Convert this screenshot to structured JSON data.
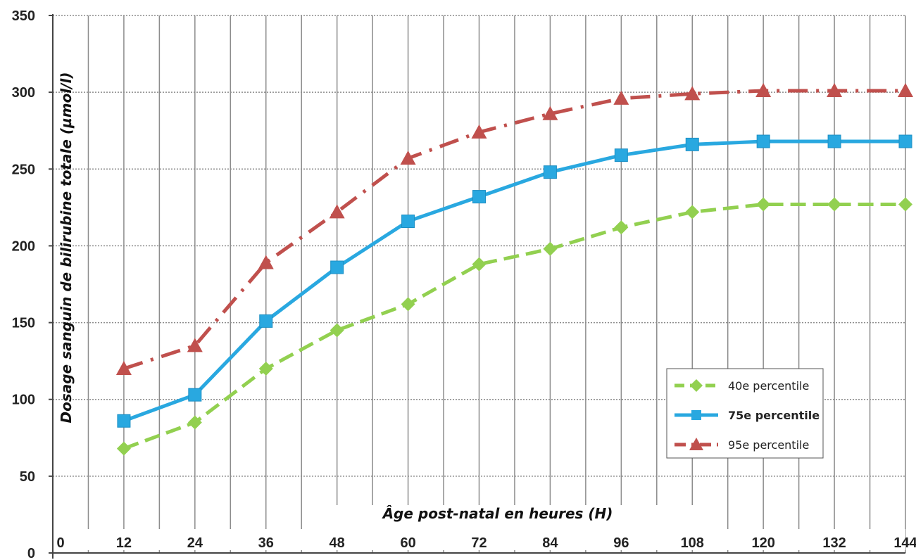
{
  "chart_data": {
    "type": "line",
    "title": "",
    "xlabel": "Âge post-natal en heures (H)",
    "ylabel": "Dosage sanguin de bilirubine totale (µmol/l)",
    "x": [
      0,
      12,
      24,
      36,
      48,
      60,
      72,
      84,
      96,
      108,
      120,
      132,
      144
    ],
    "x_tick_labels": [
      "0",
      "12",
      "24",
      "36",
      "48",
      "60",
      "72",
      "84",
      "96",
      "108",
      "120",
      "132",
      "144"
    ],
    "y_ticks": [
      0,
      50,
      100,
      150,
      200,
      250,
      300,
      350
    ],
    "y_tick_labels": [
      "0",
      "50",
      "100",
      "150",
      "200",
      "250",
      "300",
      "350"
    ],
    "ylim": [
      0,
      350
    ],
    "xlim": [
      0,
      144
    ],
    "grid": true,
    "legend_position": "bottom-right",
    "series": [
      {
        "name": "40e percentile",
        "color": "#92D050",
        "marker": "diamond",
        "dash": "dashed",
        "x": [
          12,
          24,
          36,
          48,
          60,
          72,
          84,
          96,
          108,
          120,
          132,
          144
        ],
        "values": [
          68,
          85,
          120,
          145,
          162,
          188,
          198,
          212,
          222,
          227,
          227,
          227
        ]
      },
      {
        "name": "75e percentile",
        "color": "#29A8E0",
        "marker": "square",
        "dash": "solid",
        "x": [
          12,
          24,
          36,
          48,
          60,
          72,
          84,
          96,
          108,
          120,
          132,
          144
        ],
        "values": [
          86,
          103,
          151,
          186,
          216,
          232,
          248,
          259,
          266,
          268,
          268,
          268
        ]
      },
      {
        "name": "95e percentile",
        "color": "#C0504D",
        "marker": "triangle",
        "dash": "dashdot",
        "x": [
          12,
          24,
          36,
          48,
          60,
          72,
          84,
          96,
          108,
          120,
          132,
          144
        ],
        "values": [
          120,
          135,
          189,
          222,
          257,
          274,
          286,
          296,
          299,
          301,
          301,
          301
        ]
      }
    ]
  }
}
